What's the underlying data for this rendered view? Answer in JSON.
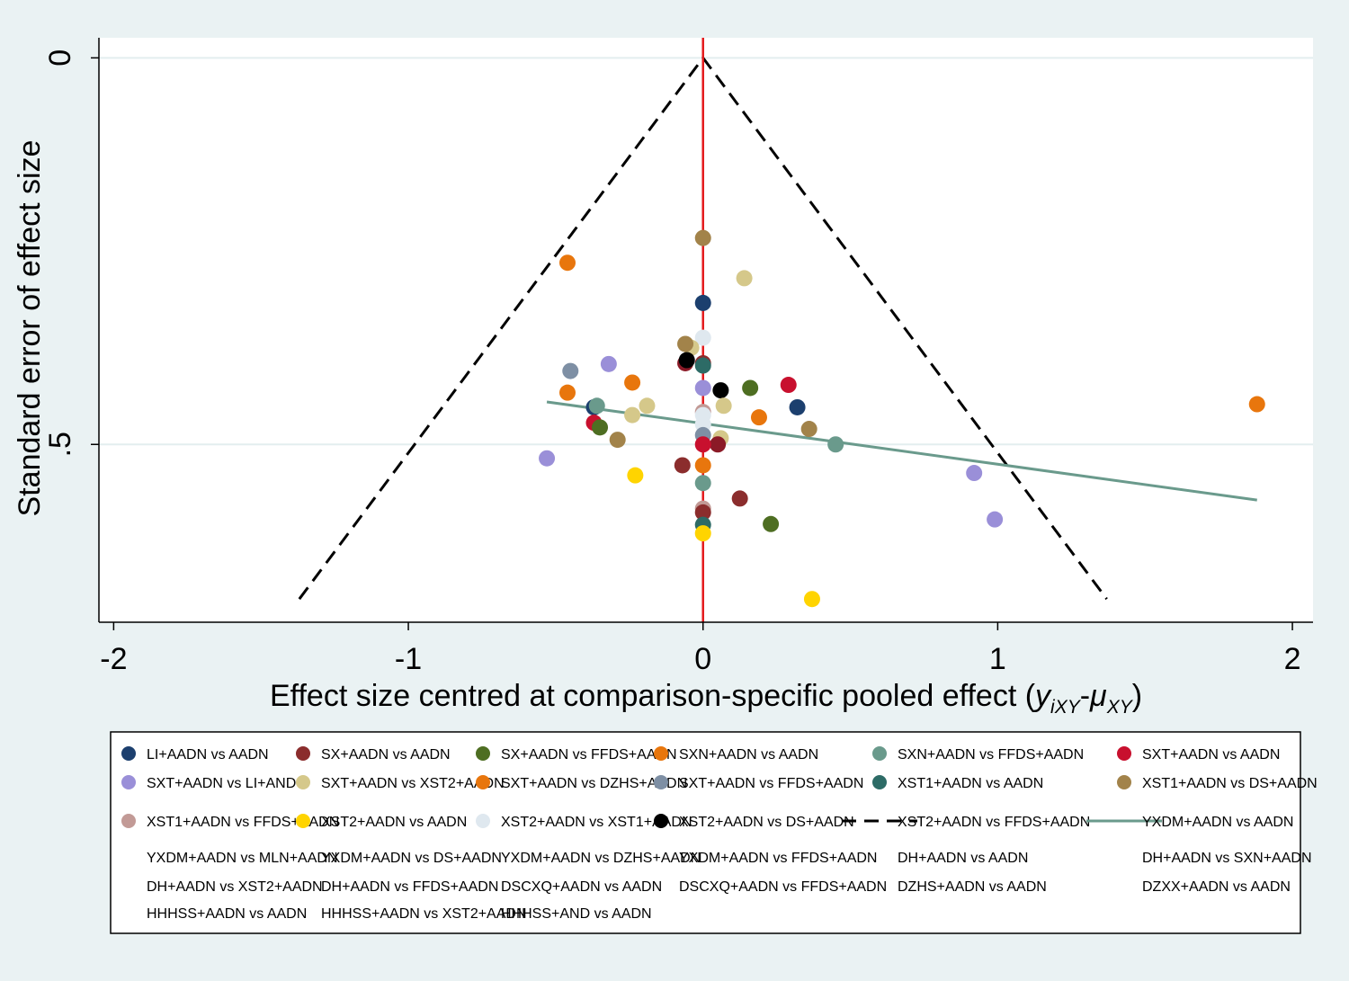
{
  "chart_data": {
    "type": "scatter",
    "title": "",
    "xlabel_main": "Effect size centred at comparison-specific pooled effect (",
    "xlabel_y": "y",
    "xlabel_y_sub": "iXY",
    "xlabel_dash": "-",
    "xlabel_mu": "μ",
    "xlabel_mu_sub": "XY",
    "xlabel_close": ")",
    "ylabel": "Standard error of effect size",
    "xlim": [
      -2.05,
      2.07
    ],
    "ylim": [
      -0.026,
      0.73
    ],
    "y_reversed": true,
    "grid": "horizontal",
    "x_ticks": [
      {
        "value": -2,
        "label": "-2"
      },
      {
        "value": -1,
        "label": "-1"
      },
      {
        "value": 0,
        "label": "0"
      },
      {
        "value": 1,
        "label": "1"
      },
      {
        "value": 2,
        "label": "2"
      }
    ],
    "y_ticks": [
      {
        "value": 0,
        "label": "0"
      },
      {
        "value": 0.5,
        "label": ".5"
      }
    ],
    "reference_line": {
      "x": 0,
      "color": "#e41a1c"
    },
    "funnel": {
      "apex": [
        0,
        0
      ],
      "base_left": [
        -1.37,
        0.7
      ],
      "base_right": [
        1.37,
        0.7
      ]
    },
    "fit_line": {
      "x": [
        -0.53,
        1.88
      ],
      "y": [
        0.445,
        0.572
      ],
      "color": "#6a9a8c"
    },
    "points": [
      {
        "x": 0.0,
        "y": 0.233,
        "color": "#a2834a"
      },
      {
        "x": -0.46,
        "y": 0.265,
        "color": "#e8760d"
      },
      {
        "x": 0.14,
        "y": 0.285,
        "color": "#d5c88a"
      },
      {
        "x": 0.0,
        "y": 0.317,
        "color": "#1c3f6e"
      },
      {
        "x": 0.0,
        "y": 0.362,
        "color": "#dfe8ef"
      },
      {
        "x": -0.04,
        "y": 0.375,
        "color": "#d5c88a"
      },
      {
        "x": -0.06,
        "y": 0.37,
        "color": "#a2834a"
      },
      {
        "x": -0.06,
        "y": 0.395,
        "color": "#8b1a27"
      },
      {
        "x": -0.055,
        "y": 0.391,
        "color": "#000000"
      },
      {
        "x": 0.0,
        "y": 0.395,
        "color": "#8b2d2d"
      },
      {
        "x": 0.0,
        "y": 0.398,
        "color": "#2d6b66"
      },
      {
        "x": -0.45,
        "y": 0.405,
        "color": "#7e8fa4"
      },
      {
        "x": -0.32,
        "y": 0.396,
        "color": "#9a8fd8"
      },
      {
        "x": -0.24,
        "y": 0.42,
        "color": "#e8760d"
      },
      {
        "x": 0.0,
        "y": 0.427,
        "color": "#9a8fd8"
      },
      {
        "x": 0.06,
        "y": 0.43,
        "color": "#000000"
      },
      {
        "x": 0.16,
        "y": 0.427,
        "color": "#4e6e22"
      },
      {
        "x": 0.29,
        "y": 0.423,
        "color": "#c8102e"
      },
      {
        "x": -0.46,
        "y": 0.433,
        "color": "#e8760d"
      },
      {
        "x": -0.37,
        "y": 0.452,
        "color": "#1c3f6e"
      },
      {
        "x": -0.36,
        "y": 0.45,
        "color": "#6a9a8c"
      },
      {
        "x": -0.19,
        "y": 0.45,
        "color": "#d5c88a"
      },
      {
        "x": -0.24,
        "y": 0.462,
        "color": "#d5c88a"
      },
      {
        "x": 0.07,
        "y": 0.45,
        "color": "#d5c88a"
      },
      {
        "x": 0.32,
        "y": 0.452,
        "color": "#1c3f6e"
      },
      {
        "x": 0.0,
        "y": 0.458,
        "color": "#c29a96"
      },
      {
        "x": 0.0,
        "y": 0.462,
        "color": "#dfe8ef"
      },
      {
        "x": 0.19,
        "y": 0.465,
        "color": "#e8760d"
      },
      {
        "x": -0.37,
        "y": 0.472,
        "color": "#c8102e"
      },
      {
        "x": -0.35,
        "y": 0.478,
        "color": "#4e6e22"
      },
      {
        "x": 0.0,
        "y": 0.474,
        "color": "#dfe8ef"
      },
      {
        "x": 0.36,
        "y": 0.48,
        "color": "#a2834a"
      },
      {
        "x": 0.0,
        "y": 0.488,
        "color": "#7e8fa4"
      },
      {
        "x": -0.29,
        "y": 0.494,
        "color": "#a2834a"
      },
      {
        "x": 0.06,
        "y": 0.492,
        "color": "#d5c88a"
      },
      {
        "x": 0.05,
        "y": 0.5,
        "color": "#8b1a27"
      },
      {
        "x": 0.0,
        "y": 0.5,
        "color": "#c8102e"
      },
      {
        "x": 0.45,
        "y": 0.5,
        "color": "#6a9a8c"
      },
      {
        "x": -0.53,
        "y": 0.518,
        "color": "#9a8fd8"
      },
      {
        "x": -0.07,
        "y": 0.527,
        "color": "#8b2d2d"
      },
      {
        "x": 0.0,
        "y": 0.527,
        "color": "#e8760d"
      },
      {
        "x": -0.23,
        "y": 0.54,
        "color": "#ffd400"
      },
      {
        "x": 0.92,
        "y": 0.537,
        "color": "#9a8fd8"
      },
      {
        "x": 0.0,
        "y": 0.55,
        "color": "#6a9a8c"
      },
      {
        "x": 0.125,
        "y": 0.57,
        "color": "#8b2d2d"
      },
      {
        "x": 0.0,
        "y": 0.583,
        "color": "#c29a96"
      },
      {
        "x": 0.0,
        "y": 0.588,
        "color": "#8b2d2d"
      },
      {
        "x": 0.0,
        "y": 0.604,
        "color": "#2d6b66"
      },
      {
        "x": 0.23,
        "y": 0.603,
        "color": "#4e6e22"
      },
      {
        "x": 0.99,
        "y": 0.597,
        "color": "#9a8fd8"
      },
      {
        "x": 0.0,
        "y": 0.615,
        "color": "#ffd400"
      },
      {
        "x": 0.37,
        "y": 0.7,
        "color": "#ffd400"
      },
      {
        "x": 1.88,
        "y": 0.448,
        "color": "#e8760d"
      }
    ],
    "legend": {
      "placement": "bottom",
      "entries": [
        {
          "label": "LI+AADN vs AADN",
          "type": "marker",
          "color": "#1c3f6e"
        },
        {
          "label": "SX+AADN vs AADN",
          "type": "marker",
          "color": "#8b2d2d"
        },
        {
          "label": "SX+AADN vs FFDS+AADN",
          "type": "marker",
          "color": "#4e6e22"
        },
        {
          "label": "SXN+AADN vs AADN",
          "type": "marker",
          "color": "#e8760d"
        },
        {
          "label": "SXN+AADN vs FFDS+AADN",
          "type": "marker",
          "color": "#6a9a8c"
        },
        {
          "label": "SXT+AADN vs AADN",
          "type": "marker",
          "color": "#c8102e"
        },
        {
          "label": "SXT+AADN vs LI+AND",
          "type": "marker",
          "color": "#9a8fd8"
        },
        {
          "label": "SXT+AADN vs XST2+AADN",
          "type": "marker",
          "color": "#d5c88a"
        },
        {
          "label": "SXT+AADN vs DZHS+AADN",
          "type": "marker",
          "color": "#e8760d"
        },
        {
          "label": "SXT+AADN vs FFDS+AADN",
          "type": "marker",
          "color": "#7e8fa4"
        },
        {
          "label": "XST1+AADN vs AADN",
          "type": "marker",
          "color": "#2d6b66"
        },
        {
          "label": "XST1+AADN vs DS+AADN",
          "type": "marker",
          "color": "#a2834a"
        },
        {
          "label": "XST1+AADN vs FFDS+AADN",
          "type": "marker",
          "color": "#c29a96"
        },
        {
          "label": "XST2+AADN vs AADN",
          "type": "marker",
          "color": "#ffd400"
        },
        {
          "label": "XST2+AADN vs XST1+AADN",
          "type": "marker",
          "color": "#dfe8ef"
        },
        {
          "label": "XST2+AADN vs DS+AADN",
          "type": "marker",
          "color": "#000000"
        },
        {
          "label": "XST2+AADN vs FFDS+AADN",
          "type": "dash",
          "color": "#000000"
        },
        {
          "label": "YXDM+AADN vs AADN",
          "type": "line",
          "color": "#6a9a8c"
        },
        {
          "label": "YXDM+AADN vs MLN+AADN",
          "type": "none",
          "color": ""
        },
        {
          "label": "YXDM+AADN vs DS+AADN",
          "type": "none",
          "color": ""
        },
        {
          "label": "YXDM+AADN vs DZHS+AADN",
          "type": "none",
          "color": ""
        },
        {
          "label": "YXDM+AADN vs FFDS+AADN",
          "type": "none",
          "color": ""
        },
        {
          "label": "DH+AADN vs AADN",
          "type": "none",
          "color": ""
        },
        {
          "label": "DH+AADN vs SXN+AADN",
          "type": "none",
          "color": ""
        },
        {
          "label": "DH+AADN vs XST2+AADN",
          "type": "none",
          "color": ""
        },
        {
          "label": "DH+AADN vs FFDS+AADN",
          "type": "none",
          "color": ""
        },
        {
          "label": "DSCXQ+AADN vs AADN",
          "type": "none",
          "color": ""
        },
        {
          "label": "DSCXQ+AADN vs FFDS+AADN",
          "type": "none",
          "color": ""
        },
        {
          "label": "DZHS+AADN vs AADN",
          "type": "none",
          "color": ""
        },
        {
          "label": "DZXX+AADN vs AADN",
          "type": "none",
          "color": ""
        },
        {
          "label": "HHHSS+AADN vs AADN",
          "type": "none",
          "color": ""
        },
        {
          "label": "HHHSS+AADN vs XST2+AADN",
          "type": "none",
          "color": ""
        },
        {
          "label": "HHHSS+AND vs AADN",
          "type": "none",
          "color": ""
        }
      ]
    }
  }
}
